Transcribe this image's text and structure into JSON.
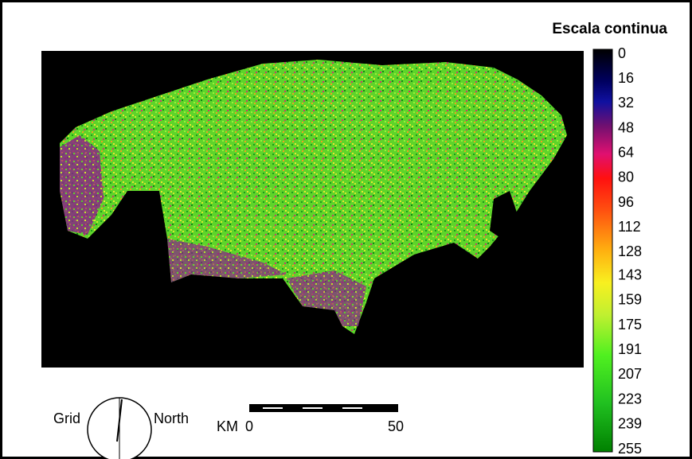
{
  "legend": {
    "title": "Escala continua",
    "ticks": [
      0,
      16,
      32,
      48,
      64,
      80,
      96,
      112,
      128,
      143,
      159,
      175,
      191,
      207,
      223,
      239,
      255
    ]
  },
  "compass": {
    "left_label": "Grid",
    "right_label": "North"
  },
  "scale_bar": {
    "unit": "KM",
    "start": 0,
    "end": 50
  }
}
